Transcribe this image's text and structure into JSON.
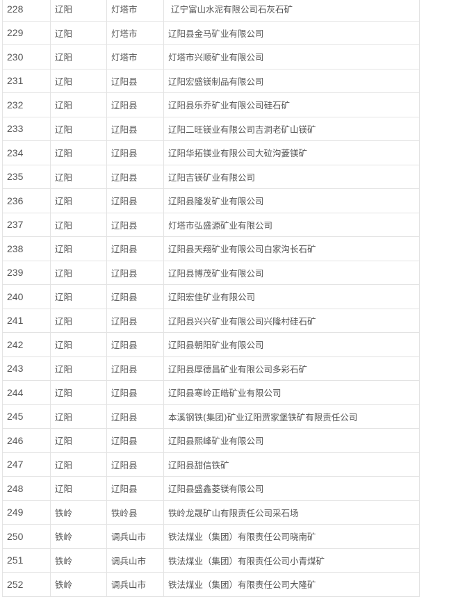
{
  "table": {
    "rows": [
      {
        "no": "228",
        "city": "辽阳",
        "county": "灯塔市",
        "name": " 辽宁富山水泥有限公司石灰石矿"
      },
      {
        "no": "229",
        "city": "辽阳",
        "county": "灯塔市",
        "name": "辽阳县金马矿业有限公司"
      },
      {
        "no": "230",
        "city": "辽阳",
        "county": "灯塔市",
        "name": "灯塔市兴顺矿业有限公司"
      },
      {
        "no": "231",
        "city": "辽阳",
        "county": "辽阳县",
        "name": "辽阳宏盛镁制品有限公司"
      },
      {
        "no": "232",
        "city": "辽阳",
        "county": "辽阳县",
        "name": "辽阳县乐乔矿业有限公司硅石矿"
      },
      {
        "no": "233",
        "city": "辽阳",
        "county": "辽阳县",
        "name": "辽阳二旺镁业有限公司吉洞老矿山镁矿"
      },
      {
        "no": "234",
        "city": "辽阳",
        "county": "辽阳县",
        "name": "辽阳华拓镁业有限公司大砬沟菱镁矿"
      },
      {
        "no": "235",
        "city": "辽阳",
        "county": "辽阳县",
        "name": "辽阳吉镁矿业有限公司"
      },
      {
        "no": "236",
        "city": "辽阳",
        "county": "辽阳县",
        "name": "辽阳县隆发矿业有限公司"
      },
      {
        "no": "237",
        "city": "辽阳",
        "county": "辽阳县",
        "name": "灯塔市弘盛源矿业有限公司"
      },
      {
        "no": "238",
        "city": "辽阳",
        "county": "辽阳县",
        "name": "辽阳县天翔矿业有限公司白家沟长石矿"
      },
      {
        "no": "239",
        "city": "辽阳",
        "county": "辽阳县",
        "name": "辽阳县博茂矿业有限公司"
      },
      {
        "no": "240",
        "city": "辽阳",
        "county": "辽阳县",
        "name": "辽阳宏佳矿业有限公司"
      },
      {
        "no": "241",
        "city": "辽阳",
        "county": "辽阳县",
        "name": "辽阳县兴兴矿业有限公司兴隆村硅石矿"
      },
      {
        "no": "242",
        "city": "辽阳",
        "county": "辽阳县",
        "name": "辽阳县朝阳矿业有限公司"
      },
      {
        "no": "243",
        "city": "辽阳",
        "county": "辽阳县",
        "name": "辽阳县厚德昌矿业有限公司多彩石矿"
      },
      {
        "no": "244",
        "city": "辽阳",
        "county": "辽阳县",
        "name": "辽阳县寒岭正皓矿业有限公司"
      },
      {
        "no": "245",
        "city": "辽阳",
        "county": "辽阳县",
        "name": "本溪钢铁(集团)矿业辽阳贾家堡铁矿有限责任公司"
      },
      {
        "no": "246",
        "city": "辽阳",
        "county": "辽阳县",
        "name": "辽阳县熙峰矿业有限公司"
      },
      {
        "no": "247",
        "city": "辽阳",
        "county": "辽阳县",
        "name": "辽阳县甜信铁矿"
      },
      {
        "no": "248",
        "city": "辽阳",
        "county": "辽阳县",
        "name": "辽阳县盛鑫菱镁有限公司"
      },
      {
        "no": "249",
        "city": "铁岭",
        "county": "铁岭县",
        "name": "铁岭龙晟矿山有限责任公司采石场"
      },
      {
        "no": "250",
        "city": "铁岭",
        "county": "调兵山市",
        "name": "铁法煤业（集团）有限责任公司晓南矿"
      },
      {
        "no": "251",
        "city": "铁岭",
        "county": "调兵山市",
        "name": "铁法煤业（集团）有限责任公司小青煤矿"
      },
      {
        "no": "252",
        "city": "铁岭",
        "county": "调兵山市",
        "name": "铁法煤业（集团）有限责任公司大隆矿"
      }
    ]
  }
}
